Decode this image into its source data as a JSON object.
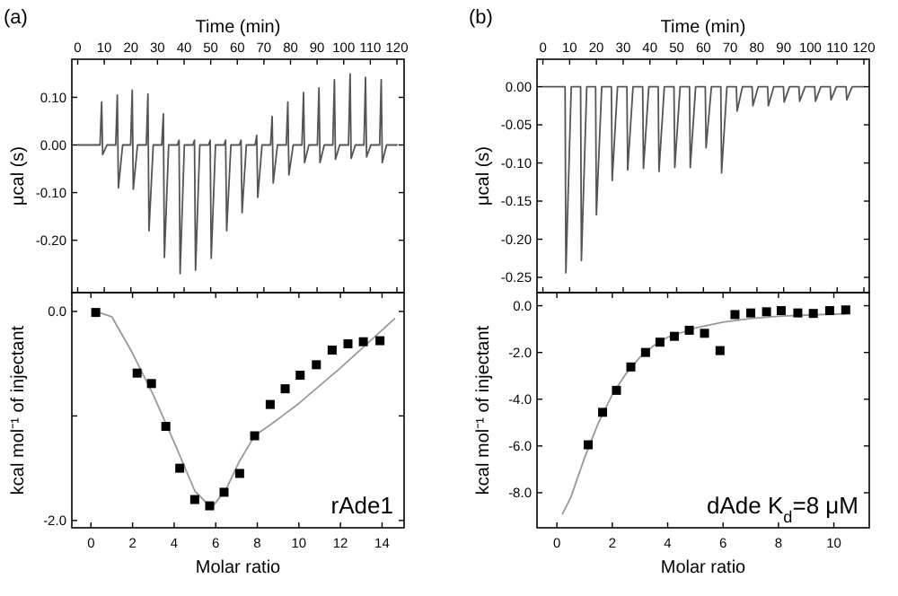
{
  "chart_data": [
    {
      "type": "line",
      "xlabel": "Time (min)",
      "ylabel": "μcal (s)",
      "annotations": [
        "(a)"
      ],
      "xlim": [
        -2.2,
        122.7
      ],
      "xticks": [
        0,
        10,
        20,
        30,
        40,
        50,
        60,
        70,
        80,
        90,
        100,
        110,
        120
      ],
      "ylim": [
        -0.31,
        0.18
      ],
      "yticks": [
        {
          "value": 0.1,
          "label": "0.10"
        },
        {
          "value": 0,
          "label": "0.00"
        },
        {
          "value": -0.1,
          "label": "-0.10"
        },
        {
          "value": -0.2,
          "label": "-0.20"
        }
      ],
      "series": [
        {
          "color": "#555555",
          "x": [
            0,
            8.4,
            9.0,
            9.4,
            11.0,
            14.3,
            14.9,
            15.3,
            16.9,
            19.9,
            20.5,
            20.9,
            22.5,
            25.8,
            26.4,
            26.8,
            28.4,
            31.6,
            32.2,
            32.6,
            34.2,
            37.5,
            38.1,
            38.5,
            40.1,
            43.3,
            43.9,
            44.3,
            45.9,
            49.2,
            49.8,
            50.2,
            51.8,
            55.0,
            55.6,
            56.0,
            57.6,
            60.8,
            61.4,
            61.8,
            63.4,
            66.7,
            67.3,
            67.7,
            69.3,
            72.5,
            73.1,
            73.5,
            75.1,
            78.4,
            79.0,
            79.4,
            81.0,
            84.3,
            84.9,
            85.3,
            86.9,
            90.1,
            90.7,
            91.1,
            92.7,
            95.9,
            96.5,
            96.9,
            98.5,
            101.8,
            102.4,
            102.8,
            104.4,
            107.6,
            108.2,
            108.6,
            110.2,
            113.5,
            114.1,
            114.5,
            116.1,
            120
          ],
          "values": [
            0,
            0,
            0.09,
            -0.02,
            0,
            0,
            0.105,
            -0.09,
            0,
            0,
            0.115,
            -0.093,
            0,
            0,
            0.107,
            -0.18,
            0,
            0,
            0.065,
            -0.236,
            0,
            0,
            0.01,
            -0.27,
            0,
            0,
            0.01,
            -0.263,
            0,
            0,
            0.01,
            -0.238,
            0,
            0,
            0.01,
            -0.18,
            0,
            0,
            0.01,
            -0.142,
            0,
            0,
            0.02,
            -0.11,
            0,
            0,
            0.06,
            -0.08,
            0,
            0,
            0.09,
            -0.063,
            0,
            0,
            0.11,
            -0.037,
            0,
            0,
            0.12,
            -0.037,
            0,
            0,
            0.137,
            -0.03,
            0,
            0,
            0.149,
            -0.028,
            0,
            0,
            0.142,
            -0.025,
            0,
            0,
            0.137,
            -0.037,
            0,
            0
          ]
        }
      ]
    },
    {
      "type": "scatter",
      "xlabel": "Molar ratio",
      "ylabel": "kcal mol⁻¹ of injectant",
      "annotations": [
        "rAde1"
      ],
      "xlim": [
        -0.92,
        15.06
      ],
      "xticks": [
        0,
        2,
        4,
        6,
        8,
        10,
        12,
        14
      ],
      "ylim": [
        -2.07,
        0.18
      ],
      "yticks": [
        {
          "value": 0,
          "label": "0.0"
        },
        {
          "value": -1,
          "label": null
        },
        {
          "value": -2,
          "label": "-2.0"
        }
      ],
      "series": [
        {
          "type": "line",
          "color": "#999999",
          "x": [
            0.2,
            1,
            2,
            3,
            4,
            5,
            5.8,
            6.5,
            7.15,
            7.87,
            9,
            10,
            11,
            12,
            13,
            14.6
          ],
          "values": [
            0,
            -0.05,
            -0.4,
            -0.8,
            -1.25,
            -1.72,
            -1.88,
            -1.7,
            -1.43,
            -1.19,
            -1.03,
            -0.88,
            -0.71,
            -0.54,
            -0.36,
            -0.07
          ]
        },
        {
          "marker": "square",
          "color": "#000000",
          "x": [
            0.23,
            2.22,
            2.91,
            3.6,
            4.27,
            4.99,
            5.71,
            6.4,
            7.15,
            7.87,
            8.62,
            9.34,
            10.06,
            10.84,
            11.6,
            12.36,
            13.1,
            13.9
          ],
          "values": [
            -0.01,
            -0.59,
            -0.69,
            -1.1,
            -1.5,
            -1.8,
            -1.86,
            -1.73,
            -1.55,
            -1.19,
            -0.89,
            -0.74,
            -0.61,
            -0.51,
            -0.37,
            -0.31,
            -0.29,
            -0.28
          ]
        }
      ]
    },
    {
      "type": "line",
      "xlabel": "Time (min)",
      "ylabel": "μcal (s)",
      "annotations": [
        "(b)"
      ],
      "xlim": [
        -2.2,
        122
      ],
      "xticks": [
        0,
        10,
        20,
        30,
        40,
        50,
        60,
        70,
        80,
        90,
        100,
        110,
        120
      ],
      "ylim": [
        -0.27,
        0.036
      ],
      "yticks": [
        {
          "value": 0,
          "label": "0.00"
        },
        {
          "value": -0.05,
          "label": "-0.05"
        },
        {
          "value": -0.1,
          "label": "-0.10"
        },
        {
          "value": -0.15,
          "label": "-0.15"
        },
        {
          "value": -0.2,
          "label": "-0.20"
        },
        {
          "value": -0.25,
          "label": "-0.25"
        }
      ],
      "series": [
        {
          "color": "#555555",
          "x": [
            0,
            8.3,
            8.6,
            10.6,
            14.1,
            14.4,
            16.4,
            19.7,
            20.0,
            22.0,
            25.6,
            25.9,
            27.9,
            31.4,
            31.7,
            33.7,
            37.3,
            37.6,
            39.6,
            43.1,
            43.4,
            45.4,
            49.0,
            49.3,
            51.3,
            54.8,
            55.1,
            57.1,
            60.7,
            61.0,
            63.0,
            66.5,
            66.8,
            68.8,
            72.3,
            72.6,
            74.6,
            78.2,
            78.5,
            80.5,
            84.0,
            84.3,
            86.3,
            89.9,
            90.2,
            92.2,
            95.7,
            96.0,
            98.0,
            101.6,
            101.9,
            103.9,
            107.4,
            107.7,
            109.7,
            113.3,
            113.6,
            115.6,
            120
          ],
          "values": [
            0,
            0,
            -0.244,
            0,
            0,
            -0.228,
            0,
            0,
            -0.168,
            0,
            0,
            -0.123,
            0,
            0,
            -0.109,
            0,
            0,
            -0.107,
            0,
            0,
            -0.111,
            0,
            0,
            -0.106,
            0,
            0,
            -0.106,
            0,
            0,
            -0.08,
            0,
            0,
            -0.113,
            0,
            0,
            -0.032,
            0,
            0,
            -0.025,
            0,
            0,
            -0.025,
            0,
            0,
            -0.02,
            0,
            0,
            -0.019,
            0,
            0,
            -0.019,
            0,
            0,
            -0.017,
            0,
            0,
            -0.017,
            0,
            0
          ]
        }
      ]
    },
    {
      "type": "scatter",
      "xlabel": "Molar ratio",
      "ylabel": "kcal mol⁻¹ of injectant",
      "annotations": [
        "dAde  K$_{d}$=8 μM"
      ],
      "xlim": [
        -0.72,
        11.28
      ],
      "xticks": [
        0,
        2,
        4,
        6,
        8,
        10
      ],
      "ylim": [
        -9.5,
        0.56
      ],
      "yticks": [
        {
          "value": 0,
          "label": "0.0"
        },
        {
          "value": -2,
          "label": "-2.0"
        },
        {
          "value": -4,
          "label": "-4.0"
        },
        {
          "value": -6,
          "label": "-6.0"
        },
        {
          "value": -8,
          "label": "-8.0"
        }
      ],
      "series": [
        {
          "type": "line",
          "color": "#999999",
          "x": [
            0.2,
            0.5,
            1,
            1.5,
            2,
            2.5,
            3,
            3.5,
            4,
            5,
            6,
            7,
            8,
            9,
            10.4
          ],
          "values": [
            -8.9,
            -8.2,
            -6.5,
            -5.0,
            -3.8,
            -2.9,
            -2.2,
            -1.7,
            -1.35,
            -0.95,
            -0.7,
            -0.55,
            -0.45,
            -0.4,
            -0.35
          ]
        },
        {
          "marker": "square",
          "color": "#000000",
          "x": [
            1.13,
            1.65,
            2.15,
            2.67,
            3.2,
            3.72,
            4.24,
            4.78,
            5.33,
            5.89,
            6.43,
            7.0,
            7.57,
            8.1,
            8.7,
            9.26,
            9.85,
            10.43
          ],
          "values": [
            -5.95,
            -4.56,
            -3.62,
            -2.62,
            -2.0,
            -1.56,
            -1.31,
            -1.05,
            -1.18,
            -1.92,
            -0.38,
            -0.31,
            -0.26,
            -0.21,
            -0.31,
            -0.33,
            -0.21,
            -0.18
          ]
        }
      ]
    }
  ]
}
